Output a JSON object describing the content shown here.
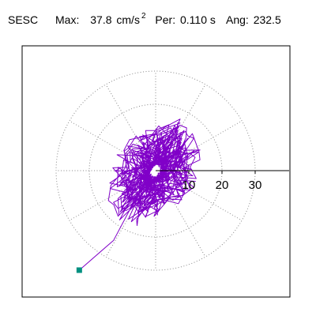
{
  "header": {
    "station": "SESC",
    "max_label": "Max:",
    "max_value": "37.8",
    "max_unit": "cm/s",
    "max_unit_exp": "2",
    "per_label": "Per:",
    "per_value": "0.110 s",
    "ang_label": "Ang:",
    "ang_value": "232.5"
  },
  "chart_data": {
    "type": "polar-orbit",
    "radial_ticks": [
      10,
      20,
      30
    ],
    "radial_tick_labels": [
      "10",
      "20",
      "30"
    ],
    "ring_radii": [
      10,
      20,
      30
    ],
    "spoke_angles_deg": [
      0,
      30,
      60,
      90,
      120,
      150,
      180,
      210,
      240,
      270,
      300,
      330
    ],
    "grid": "dotted",
    "trace_color": "#8000c8",
    "marker_color": "#009080",
    "peak": {
      "magnitude": 37.8,
      "angle_deg": 232.5
    }
  }
}
